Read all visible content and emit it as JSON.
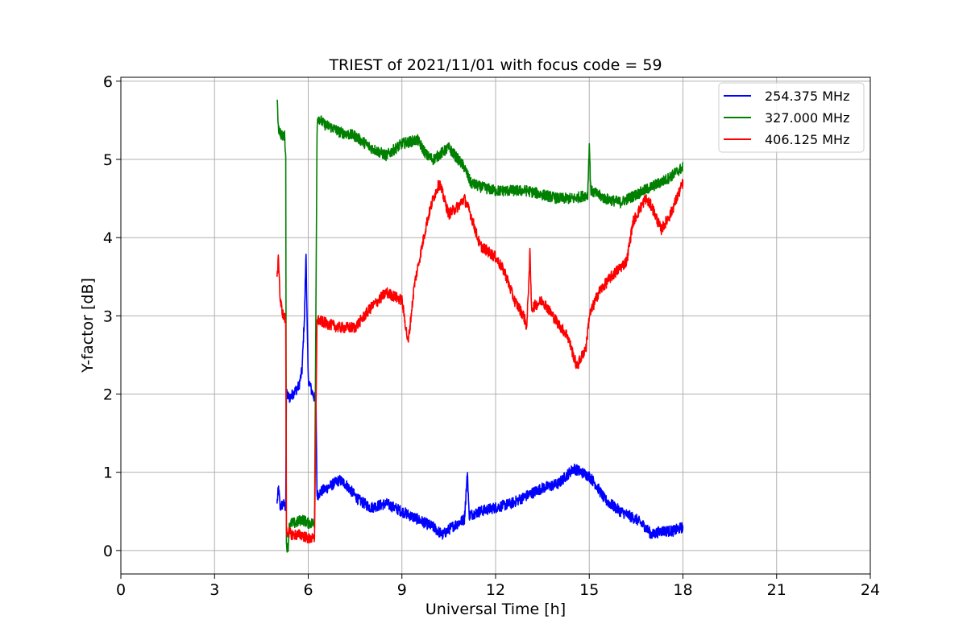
{
  "chart_data": {
    "type": "line",
    "title": "TRIEST of 2021/11/01 with focus code = 59",
    "xlabel": "Universal Time [h]",
    "ylabel": "Y-factor [dB]",
    "xlim": [
      0,
      24
    ],
    "ylim": [
      -0.3,
      6.05
    ],
    "xticks": [
      0,
      3,
      6,
      9,
      12,
      15,
      18,
      21,
      24
    ],
    "yticks": [
      0,
      1,
      2,
      3,
      4,
      5,
      6
    ],
    "grid": true,
    "legend_position": "top-right",
    "series": [
      {
        "name": "254.375 MHz",
        "color": "#0000ff",
        "points": [
          [
            5.0,
            0.6
          ],
          [
            5.05,
            0.8
          ],
          [
            5.1,
            0.55
          ],
          [
            5.2,
            0.6
          ],
          [
            5.28,
            0.55
          ],
          [
            5.3,
            2.0
          ],
          [
            5.4,
            1.95
          ],
          [
            5.5,
            2.0
          ],
          [
            5.6,
            2.05
          ],
          [
            5.7,
            2.1
          ],
          [
            5.8,
            2.3
          ],
          [
            5.88,
            3.0
          ],
          [
            5.93,
            3.8
          ],
          [
            5.97,
            2.8
          ],
          [
            6.0,
            2.2
          ],
          [
            6.1,
            2.05
          ],
          [
            6.2,
            1.95
          ],
          [
            6.25,
            1.85
          ],
          [
            6.28,
            0.7
          ],
          [
            6.4,
            0.75
          ],
          [
            6.6,
            0.8
          ],
          [
            6.8,
            0.85
          ],
          [
            7.0,
            0.9
          ],
          [
            7.2,
            0.85
          ],
          [
            7.4,
            0.75
          ],
          [
            7.6,
            0.65
          ],
          [
            8.0,
            0.55
          ],
          [
            8.5,
            0.6
          ],
          [
            9.0,
            0.5
          ],
          [
            9.5,
            0.4
          ],
          [
            10.0,
            0.3
          ],
          [
            10.3,
            0.2
          ],
          [
            10.6,
            0.3
          ],
          [
            11.0,
            0.4
          ],
          [
            11.1,
            1.0
          ],
          [
            11.15,
            0.45
          ],
          [
            11.5,
            0.5
          ],
          [
            12.0,
            0.55
          ],
          [
            12.5,
            0.6
          ],
          [
            13.0,
            0.7
          ],
          [
            13.5,
            0.8
          ],
          [
            14.0,
            0.85
          ],
          [
            14.5,
            1.05
          ],
          [
            15.0,
            0.95
          ],
          [
            15.2,
            0.85
          ],
          [
            15.5,
            0.65
          ],
          [
            16.0,
            0.5
          ],
          [
            16.5,
            0.4
          ],
          [
            16.8,
            0.3
          ],
          [
            17.0,
            0.2
          ],
          [
            17.3,
            0.25
          ],
          [
            17.7,
            0.25
          ],
          [
            18.0,
            0.3
          ]
        ]
      },
      {
        "name": "327.000 MHz",
        "color": "#008000",
        "points": [
          [
            5.0,
            5.75
          ],
          [
            5.05,
            5.4
          ],
          [
            5.15,
            5.3
          ],
          [
            5.25,
            5.3
          ],
          [
            5.28,
            5.0
          ],
          [
            5.3,
            0.1
          ],
          [
            5.35,
            0.0
          ],
          [
            5.4,
            0.35
          ],
          [
            5.6,
            0.35
          ],
          [
            5.8,
            0.4
          ],
          [
            6.0,
            0.35
          ],
          [
            6.2,
            0.35
          ],
          [
            6.28,
            5.3
          ],
          [
            6.3,
            5.55
          ],
          [
            6.5,
            5.45
          ],
          [
            6.8,
            5.4
          ],
          [
            7.0,
            5.35
          ],
          [
            7.5,
            5.3
          ],
          [
            8.0,
            5.15
          ],
          [
            8.5,
            5.05
          ],
          [
            9.0,
            5.2
          ],
          [
            9.5,
            5.25
          ],
          [
            9.8,
            5.05
          ],
          [
            10.0,
            5.0
          ],
          [
            10.5,
            5.15
          ],
          [
            11.0,
            4.9
          ],
          [
            11.2,
            4.7
          ],
          [
            11.5,
            4.65
          ],
          [
            12.0,
            4.6
          ],
          [
            12.5,
            4.6
          ],
          [
            13.0,
            4.6
          ],
          [
            13.5,
            4.55
          ],
          [
            14.0,
            4.5
          ],
          [
            14.5,
            4.5
          ],
          [
            14.95,
            4.55
          ],
          [
            15.0,
            5.2
          ],
          [
            15.05,
            4.6
          ],
          [
            15.5,
            4.5
          ],
          [
            16.0,
            4.45
          ],
          [
            16.5,
            4.55
          ],
          [
            17.0,
            4.65
          ],
          [
            17.5,
            4.75
          ],
          [
            18.0,
            4.9
          ]
        ]
      },
      {
        "name": "406.125 MHz",
        "color": "#ff0000",
        "points": [
          [
            5.0,
            3.5
          ],
          [
            5.05,
            3.75
          ],
          [
            5.1,
            3.2
          ],
          [
            5.2,
            3.0
          ],
          [
            5.28,
            2.95
          ],
          [
            5.3,
            0.25
          ],
          [
            5.5,
            0.2
          ],
          [
            5.8,
            0.2
          ],
          [
            6.0,
            0.15
          ],
          [
            6.2,
            0.15
          ],
          [
            6.28,
            2.95
          ],
          [
            6.6,
            2.9
          ],
          [
            7.0,
            2.85
          ],
          [
            7.5,
            2.85
          ],
          [
            8.0,
            3.1
          ],
          [
            8.5,
            3.3
          ],
          [
            9.0,
            3.2
          ],
          [
            9.2,
            2.65
          ],
          [
            9.4,
            3.4
          ],
          [
            9.6,
            3.8
          ],
          [
            9.8,
            4.2
          ],
          [
            10.0,
            4.5
          ],
          [
            10.2,
            4.7
          ],
          [
            10.5,
            4.3
          ],
          [
            10.8,
            4.4
          ],
          [
            11.0,
            4.5
          ],
          [
            11.2,
            4.3
          ],
          [
            11.5,
            3.9
          ],
          [
            12.0,
            3.75
          ],
          [
            12.3,
            3.55
          ],
          [
            12.6,
            3.2
          ],
          [
            12.9,
            3.0
          ],
          [
            13.0,
            2.85
          ],
          [
            13.1,
            3.8
          ],
          [
            13.15,
            3.1
          ],
          [
            13.5,
            3.2
          ],
          [
            14.0,
            2.9
          ],
          [
            14.3,
            2.75
          ],
          [
            14.6,
            2.35
          ],
          [
            14.9,
            2.6
          ],
          [
            15.0,
            3.0
          ],
          [
            15.3,
            3.3
          ],
          [
            15.7,
            3.5
          ],
          [
            16.2,
            3.7
          ],
          [
            16.4,
            4.2
          ],
          [
            16.8,
            4.5
          ],
          [
            17.0,
            4.4
          ],
          [
            17.3,
            4.1
          ],
          [
            17.6,
            4.3
          ],
          [
            18.0,
            4.7
          ]
        ]
      }
    ]
  }
}
